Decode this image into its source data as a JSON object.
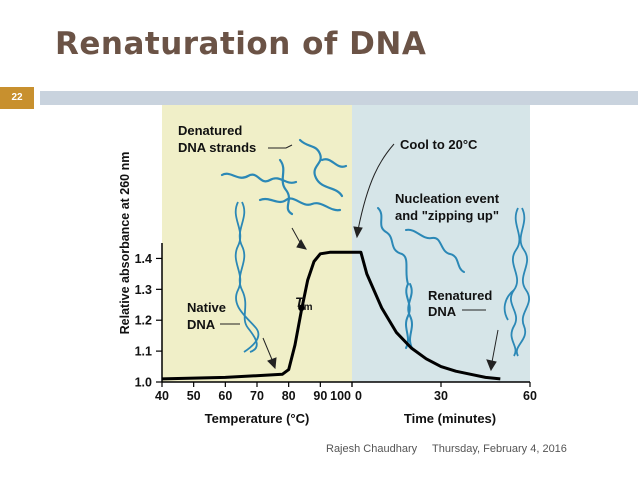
{
  "slide": {
    "title": "Renaturation of DNA",
    "number": "22",
    "author": "Rajesh Chaudhary",
    "date": "Thursday, February 4, 2016"
  },
  "chart_data": {
    "type": "line",
    "ylabel": "Relative absorbance at 260 nm",
    "ylim": [
      1.0,
      1.45
    ],
    "yticks": [
      "1.0",
      "1.1",
      "1.2",
      "1.3",
      "1.4"
    ],
    "grid": false,
    "panels": [
      {
        "xlabel": "Temperature (°C)",
        "xlim": [
          40,
          100
        ],
        "xticks": [
          "40",
          "50",
          "60",
          "70",
          "80",
          "90",
          "100"
        ],
        "background": "#f0efc8",
        "series": [
          {
            "x": [
              40,
              60,
              78,
              80,
              82,
              84,
              86,
              88,
              90,
              93,
              97,
              100
            ],
            "y": [
              1.01,
              1.015,
              1.025,
              1.04,
              1.12,
              1.23,
              1.33,
              1.39,
              1.415,
              1.42,
              1.42,
              1.42
            ]
          }
        ],
        "tm_point": {
          "x": 84,
          "y": 1.24
        }
      },
      {
        "xlabel": "Time (minutes)",
        "xlim": [
          0,
          60
        ],
        "xticks": [
          "0",
          "30",
          "60"
        ],
        "background": "#d6e5e8",
        "series": [
          {
            "x": [
              0,
              3,
              5,
              10,
              15,
              20,
              25,
              30,
              35,
              40,
              45,
              50
            ],
            "y": [
              1.42,
              1.42,
              1.35,
              1.24,
              1.16,
              1.11,
              1.075,
              1.05,
              1.035,
              1.025,
              1.015,
              1.01
            ]
          }
        ]
      }
    ],
    "annotations": {
      "denatured_line1": "Denatured",
      "denatured_line2": "DNA strands",
      "native_line1": "Native",
      "native_line2": "DNA",
      "tm_main": "T",
      "tm_sub": "m",
      "cool": "Cool to 20°C",
      "nucleation_line1": "Nucleation event",
      "nucleation_line2": "and \"zipping up\"",
      "renatured_line1": "Renatured",
      "renatured_line2": "DNA"
    }
  },
  "colors": {
    "title": "#6b5346",
    "rule": "#c9d3de",
    "slide_number_bg": "#c8902e",
    "curve": "#000000",
    "strand": "#2b88b6"
  }
}
